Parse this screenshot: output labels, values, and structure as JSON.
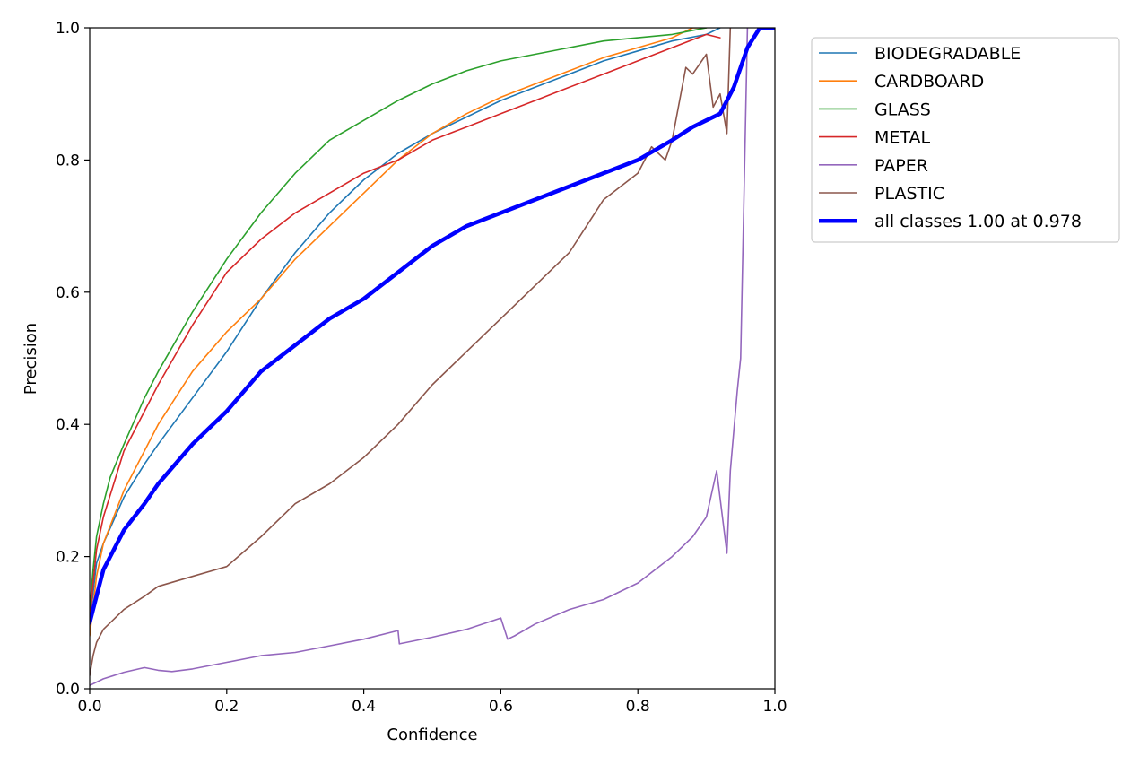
{
  "chart_data": {
    "type": "line",
    "title": "",
    "xlabel": "Confidence",
    "ylabel": "Precision",
    "xlim": [
      0.0,
      1.0
    ],
    "ylim": [
      0.0,
      1.0
    ],
    "xticks": [
      "0.0",
      "0.2",
      "0.4",
      "0.6",
      "0.8",
      "1.0"
    ],
    "yticks": [
      "0.0",
      "0.2",
      "0.4",
      "0.6",
      "0.8",
      "1.0"
    ],
    "grid": false,
    "legend_position": "outside-right",
    "series": [
      {
        "name": "BIODEGRADABLE",
        "color": "#1f77b4",
        "width": "thin",
        "x": [
          0,
          0.01,
          0.02,
          0.05,
          0.08,
          0.1,
          0.15,
          0.2,
          0.25,
          0.3,
          0.35,
          0.4,
          0.45,
          0.5,
          0.55,
          0.6,
          0.65,
          0.7,
          0.75,
          0.8,
          0.85,
          0.9,
          0.92
        ],
        "y": [
          0.1,
          0.19,
          0.22,
          0.29,
          0.34,
          0.37,
          0.44,
          0.51,
          0.59,
          0.66,
          0.72,
          0.77,
          0.81,
          0.84,
          0.865,
          0.89,
          0.91,
          0.93,
          0.95,
          0.965,
          0.98,
          0.99,
          1.0
        ]
      },
      {
        "name": "CARDBOARD",
        "color": "#ff7f0e",
        "width": "thin",
        "x": [
          0,
          0.01,
          0.02,
          0.05,
          0.08,
          0.1,
          0.15,
          0.2,
          0.25,
          0.3,
          0.35,
          0.4,
          0.45,
          0.5,
          0.55,
          0.6,
          0.65,
          0.7,
          0.75,
          0.8,
          0.85,
          0.88,
          0.9
        ],
        "y": [
          0.08,
          0.17,
          0.22,
          0.3,
          0.36,
          0.4,
          0.48,
          0.54,
          0.59,
          0.65,
          0.7,
          0.75,
          0.8,
          0.84,
          0.87,
          0.895,
          0.915,
          0.935,
          0.955,
          0.97,
          0.985,
          1.0,
          1.0
        ]
      },
      {
        "name": "GLASS",
        "color": "#2ca02c",
        "width": "thin",
        "x": [
          0,
          0.005,
          0.01,
          0.02,
          0.03,
          0.05,
          0.08,
          0.1,
          0.15,
          0.2,
          0.25,
          0.3,
          0.35,
          0.4,
          0.45,
          0.5,
          0.55,
          0.6,
          0.65,
          0.7,
          0.75,
          0.8,
          0.85,
          0.9
        ],
        "y": [
          0.12,
          0.18,
          0.23,
          0.28,
          0.32,
          0.37,
          0.44,
          0.48,
          0.57,
          0.65,
          0.72,
          0.78,
          0.83,
          0.86,
          0.89,
          0.915,
          0.935,
          0.95,
          0.96,
          0.97,
          0.98,
          0.985,
          0.99,
          1.0
        ]
      },
      {
        "name": "METAL",
        "color": "#d62728",
        "width": "thin",
        "x": [
          0,
          0.005,
          0.01,
          0.02,
          0.05,
          0.08,
          0.1,
          0.15,
          0.2,
          0.25,
          0.3,
          0.35,
          0.4,
          0.45,
          0.5,
          0.55,
          0.6,
          0.65,
          0.7,
          0.75,
          0.8,
          0.85,
          0.9,
          0.92
        ],
        "y": [
          0.1,
          0.16,
          0.21,
          0.26,
          0.36,
          0.42,
          0.46,
          0.55,
          0.63,
          0.68,
          0.72,
          0.75,
          0.78,
          0.8,
          0.83,
          0.85,
          0.87,
          0.89,
          0.91,
          0.93,
          0.95,
          0.97,
          0.99,
          0.985
        ]
      },
      {
        "name": "PAPER",
        "color": "#9467bd",
        "width": "thin",
        "x": [
          0,
          0.02,
          0.05,
          0.08,
          0.1,
          0.12,
          0.15,
          0.2,
          0.25,
          0.3,
          0.35,
          0.4,
          0.45,
          0.452,
          0.5,
          0.55,
          0.6,
          0.61,
          0.62,
          0.65,
          0.7,
          0.75,
          0.8,
          0.85,
          0.88,
          0.9,
          0.915,
          0.93,
          0.935,
          0.945,
          0.95,
          0.96
        ],
        "y": [
          0.005,
          0.015,
          0.025,
          0.032,
          0.028,
          0.026,
          0.03,
          0.04,
          0.05,
          0.055,
          0.065,
          0.075,
          0.088,
          0.068,
          0.078,
          0.09,
          0.107,
          0.075,
          0.08,
          0.098,
          0.12,
          0.135,
          0.16,
          0.2,
          0.23,
          0.26,
          0.33,
          0.205,
          0.33,
          0.45,
          0.5,
          1.0
        ]
      },
      {
        "name": "PLASTIC",
        "color": "#8c564b",
        "width": "thin",
        "x": [
          0,
          0.005,
          0.01,
          0.02,
          0.05,
          0.08,
          0.1,
          0.15,
          0.2,
          0.25,
          0.3,
          0.35,
          0.4,
          0.45,
          0.5,
          0.55,
          0.6,
          0.65,
          0.7,
          0.75,
          0.8,
          0.82,
          0.84,
          0.85,
          0.87,
          0.88,
          0.9,
          0.91,
          0.92,
          0.93,
          0.935
        ],
        "y": [
          0.02,
          0.05,
          0.07,
          0.09,
          0.12,
          0.14,
          0.155,
          0.17,
          0.185,
          0.23,
          0.28,
          0.31,
          0.35,
          0.4,
          0.46,
          0.51,
          0.56,
          0.61,
          0.66,
          0.74,
          0.78,
          0.82,
          0.8,
          0.83,
          0.94,
          0.93,
          0.96,
          0.88,
          0.9,
          0.84,
          1.0
        ]
      },
      {
        "name": "all classes 1.00 at 0.978",
        "color": "#0000ff",
        "width": "thick",
        "x": [
          0,
          0.01,
          0.02,
          0.05,
          0.08,
          0.1,
          0.15,
          0.2,
          0.25,
          0.3,
          0.35,
          0.4,
          0.45,
          0.5,
          0.55,
          0.6,
          0.65,
          0.7,
          0.75,
          0.8,
          0.85,
          0.88,
          0.9,
          0.92,
          0.94,
          0.96,
          0.978,
          1.0
        ],
        "y": [
          0.1,
          0.14,
          0.18,
          0.24,
          0.28,
          0.31,
          0.37,
          0.42,
          0.48,
          0.52,
          0.56,
          0.59,
          0.63,
          0.67,
          0.7,
          0.72,
          0.74,
          0.76,
          0.78,
          0.8,
          0.83,
          0.85,
          0.86,
          0.87,
          0.91,
          0.97,
          1.0,
          1.0
        ]
      }
    ]
  }
}
